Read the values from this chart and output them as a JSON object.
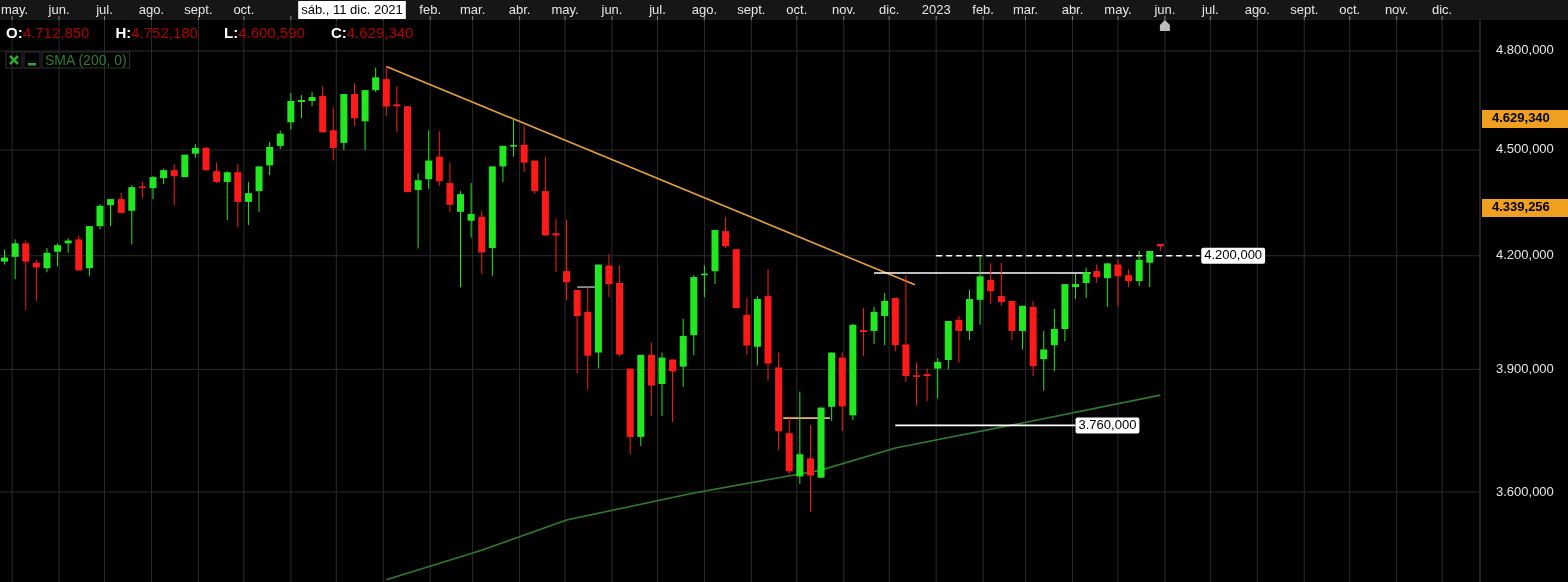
{
  "chart_data": {
    "type": "candlestick",
    "x": [
      "2021-04-26",
      "2021-05-03",
      "2021-05-10",
      "2021-05-17",
      "2021-05-24",
      "2021-05-31",
      "2021-06-07",
      "2021-06-14",
      "2021-06-21",
      "2021-06-28",
      "2021-07-05",
      "2021-07-12",
      "2021-07-19",
      "2021-07-26",
      "2021-08-02",
      "2021-08-09",
      "2021-08-16",
      "2021-08-23",
      "2021-08-30",
      "2021-09-06",
      "2021-09-13",
      "2021-09-20",
      "2021-09-27",
      "2021-10-04",
      "2021-10-11",
      "2021-10-18",
      "2021-10-25",
      "2021-11-01",
      "2021-11-08",
      "2021-11-15",
      "2021-11-22",
      "2021-11-29",
      "2021-12-06",
      "2021-12-13",
      "2021-12-20",
      "2021-12-27",
      "2022-01-03",
      "2022-01-10",
      "2022-01-17",
      "2022-01-24",
      "2022-01-31",
      "2022-02-07",
      "2022-02-14",
      "2022-02-21",
      "2022-02-28",
      "2022-03-07",
      "2022-03-14",
      "2022-03-21",
      "2022-03-28",
      "2022-04-04",
      "2022-04-11",
      "2022-04-18",
      "2022-04-25",
      "2022-05-02",
      "2022-05-09",
      "2022-05-16",
      "2022-05-23",
      "2022-05-30",
      "2022-06-06",
      "2022-06-13",
      "2022-06-20",
      "2022-06-27",
      "2022-07-04",
      "2022-07-11",
      "2022-07-18",
      "2022-07-25",
      "2022-08-01",
      "2022-08-08",
      "2022-08-15",
      "2022-08-22",
      "2022-08-29",
      "2022-09-05",
      "2022-09-12",
      "2022-09-19",
      "2022-09-26",
      "2022-10-03",
      "2022-10-10",
      "2022-10-17",
      "2022-10-24",
      "2022-10-31",
      "2022-11-07",
      "2022-11-14",
      "2022-11-21",
      "2022-11-28",
      "2022-12-05",
      "2022-12-12",
      "2022-12-19",
      "2022-12-26",
      "2023-01-02",
      "2023-01-09",
      "2023-01-16",
      "2023-01-23",
      "2023-01-30",
      "2023-02-06",
      "2023-02-13",
      "2023-02-20",
      "2023-02-27",
      "2023-03-06",
      "2023-03-13",
      "2023-03-20",
      "2023-03-27",
      "2023-04-03",
      "2023-04-10",
      "2023-04-17",
      "2023-04-24",
      "2023-05-01",
      "2023-05-08",
      "2023-05-15",
      "2023-05-22",
      "2023-05-29"
    ],
    "ohlc": [
      [
        4184,
        4217,
        4176,
        4195
      ],
      [
        4197,
        4245,
        4136,
        4234
      ],
      [
        4234,
        4242,
        4054,
        4184
      ],
      [
        4181,
        4189,
        4078,
        4168
      ],
      [
        4166,
        4221,
        4155,
        4208
      ],
      [
        4211,
        4234,
        4171,
        4229
      ],
      [
        4234,
        4248,
        4208,
        4242
      ],
      [
        4245,
        4256,
        4160,
        4160
      ],
      [
        4166,
        4282,
        4144,
        4282
      ],
      [
        4282,
        4344,
        4273,
        4339
      ],
      [
        4341,
        4358,
        4282,
        4358
      ],
      [
        4358,
        4375,
        4319,
        4319
      ],
      [
        4325,
        4398,
        4231,
        4392
      ],
      [
        4392,
        4407,
        4361,
        4389
      ],
      [
        4389,
        4424,
        4358,
        4421
      ],
      [
        4418,
        4446,
        4401,
        4441
      ],
      [
        4441,
        4458,
        4341,
        4424
      ],
      [
        4421,
        4486,
        4421,
        4486
      ],
      [
        4489,
        4518,
        4477,
        4506
      ],
      [
        4506,
        4509,
        4438,
        4441
      ],
      [
        4438,
        4463,
        4404,
        4407
      ],
      [
        4407,
        4438,
        4299,
        4435
      ],
      [
        4435,
        4458,
        4279,
        4350
      ],
      [
        4350,
        4407,
        4285,
        4375
      ],
      [
        4381,
        4452,
        4322,
        4452
      ],
      [
        4455,
        4523,
        4427,
        4509
      ],
      [
        4512,
        4557,
        4503,
        4548
      ],
      [
        4582,
        4670,
        4560,
        4646
      ],
      [
        4643,
        4664,
        4594,
        4649
      ],
      [
        4646,
        4673,
        4630,
        4658
      ],
      [
        4661,
        4691,
        4552,
        4552
      ],
      [
        4558,
        4627,
        4469,
        4506
      ],
      [
        4521,
        4667,
        4500,
        4667
      ],
      [
        4667,
        4700,
        4570,
        4594
      ],
      [
        4585,
        4679,
        4500,
        4679
      ],
      [
        4679,
        4748,
        4673,
        4718
      ],
      [
        4712.85,
        4752.18,
        4600.59,
        4629.34
      ],
      [
        4636,
        4691,
        4552,
        4630
      ],
      [
        4630,
        4630,
        4378,
        4378
      ],
      [
        4384,
        4432,
        4220,
        4412
      ],
      [
        4415,
        4558,
        4387,
        4469
      ],
      [
        4480,
        4555,
        4395,
        4409
      ],
      [
        4404,
        4463,
        4322,
        4342
      ],
      [
        4322,
        4381,
        4115,
        4372
      ],
      [
        4297,
        4404,
        4250,
        4316
      ],
      [
        4308,
        4325,
        4150,
        4209
      ],
      [
        4221,
        4452,
        4144,
        4452
      ],
      [
        4452,
        4512,
        4407,
        4512
      ],
      [
        4509,
        4591,
        4480,
        4512
      ],
      [
        4515,
        4570,
        4435,
        4463
      ],
      [
        4469,
        4469,
        4372,
        4381
      ],
      [
        4381,
        4480,
        4256,
        4256
      ],
      [
        4262,
        4302,
        4155,
        4256
      ],
      [
        4158,
        4299,
        4080,
        4128
      ],
      [
        4107,
        4107,
        3890,
        4038
      ],
      [
        4049,
        4115,
        3849,
        3935
      ],
      [
        3943,
        4176,
        3902,
        4176
      ],
      [
        4173,
        4205,
        4088,
        4123
      ],
      [
        4126,
        4173,
        3933,
        3938
      ],
      [
        3902,
        3902,
        3690,
        3732
      ],
      [
        3732,
        3937,
        3710,
        3937
      ],
      [
        3937,
        3969,
        3783,
        3859
      ],
      [
        3863,
        3943,
        3783,
        3930
      ],
      [
        3925,
        3925,
        3768,
        3895
      ],
      [
        3907,
        4031,
        3856,
        3986
      ],
      [
        3988,
        4147,
        3936,
        4142
      ],
      [
        4145,
        4173,
        4088,
        4149
      ],
      [
        4158,
        4271,
        4123,
        4271
      ],
      [
        4268,
        4308,
        4221,
        4226
      ],
      [
        4218,
        4218,
        4059,
        4059
      ],
      [
        4041,
        4086,
        3938,
        3961
      ],
      [
        3958,
        4091,
        3910,
        4083
      ],
      [
        4091,
        4163,
        3871,
        3915
      ],
      [
        3905,
        3943,
        3700,
        3746
      ],
      [
        3741,
        3780,
        3642,
        3649
      ],
      [
        3637,
        3844,
        3619,
        3690
      ],
      [
        3680,
        3761,
        3554,
        3639
      ],
      [
        3634,
        3804,
        3634,
        3804
      ],
      [
        3806,
        3943,
        3771,
        3943
      ],
      [
        3930,
        3943,
        3746,
        3807
      ],
      [
        3785,
        4017,
        3773,
        4015
      ],
      [
        4001,
        4059,
        3935,
        3996
      ],
      [
        3999,
        4062,
        3965,
        4049
      ],
      [
        4038,
        4099,
        3962,
        4078
      ],
      [
        4086,
        4086,
        3946,
        3962
      ],
      [
        3964,
        4147,
        3868,
        3883
      ],
      [
        3885,
        3917,
        3809,
        3881
      ],
      [
        3888,
        3902,
        3820,
        3883
      ],
      [
        3902,
        3929,
        3827,
        3919
      ],
      [
        3924,
        4025,
        3900,
        4025
      ],
      [
        4028,
        4038,
        3917,
        3999
      ],
      [
        3999,
        4107,
        3975,
        4083
      ],
      [
        4081,
        4197,
        4015,
        4144
      ],
      [
        4134,
        4179,
        4070,
        4104
      ],
      [
        4091,
        4181,
        4065,
        4075
      ],
      [
        4078,
        4078,
        3975,
        3999
      ],
      [
        3999,
        4065,
        3951,
        4065
      ],
      [
        4062,
        4078,
        3883,
        3908
      ],
      [
        3926,
        3999,
        3846,
        3951
      ],
      [
        3962,
        4057,
        3895,
        4004
      ],
      [
        4004,
        4123,
        3972,
        4123
      ],
      [
        4115,
        4150,
        4083,
        4123
      ],
      [
        4126,
        4168,
        4086,
        4155
      ],
      [
        4158,
        4176,
        4126,
        4142
      ],
      [
        4139,
        4181,
        4062,
        4179
      ],
      [
        4176,
        4189,
        4065,
        4144
      ],
      [
        4147,
        4163,
        4115,
        4131
      ],
      [
        4131,
        4213,
        4118,
        4189
      ],
      [
        4181,
        4213,
        4115,
        4213
      ],
      [
        4232,
        4232,
        4213,
        4226
      ]
    ],
    "series": [
      {
        "type": "line",
        "name": "SMA (200, 0)",
        "color": "#2e7d2e",
        "x": [
          "2022-01-03",
          "2022-03-07",
          "2022-05-02",
          "2022-07-25",
          "2022-10-17",
          "2022-12-05",
          "2023-02-27",
          "2023-05-29"
        ],
        "values": [
          3400,
          3466,
          3535,
          3598,
          3652,
          3705,
          3766,
          3835
        ]
      },
      {
        "type": "line",
        "color": "#e8a040",
        "x": [
          "2022-01-03",
          "2022-12-18"
        ],
        "values": [
          4752,
          4121
        ]
      },
      {
        "type": "line",
        "color": "#ffffff",
        "x": [
          "2022-11-21",
          "2023-04-13"
        ],
        "values": [
          4153,
          4153
        ]
      },
      {
        "type": "line",
        "color": "#ffffff",
        "line_style": "dashed",
        "x": [
          "2023-01-01",
          "2023-06-24"
        ],
        "values": [
          4200,
          4200
        ]
      },
      {
        "type": "line",
        "color": "#ffffff",
        "x": [
          "2022-12-05",
          "2023-04-03"
        ],
        "values": [
          3760,
          3760
        ]
      },
      {
        "type": "line",
        "color": "#f0b070",
        "x": [
          "2022-09-22",
          "2022-10-23"
        ],
        "values": [
          3778,
          3778
        ]
      },
      {
        "type": "line",
        "color": "#a0a0a0",
        "x": [
          "2022-05-09",
          "2022-05-22"
        ],
        "values": [
          4115,
          4115
        ]
      }
    ],
    "log": true,
    "ylim": [
      3395,
      4898
    ],
    "yticks": [
      {
        "value": 3600,
        "label": "3.600,000"
      },
      {
        "value": 3900,
        "label": "3.900,000"
      },
      {
        "value": 4200,
        "label": "4.200,000"
      },
      {
        "value": 4500,
        "label": "4.500,000"
      },
      {
        "value": 4800,
        "label": "4.800,000"
      }
    ],
    "xlim": [
      "2021-04-23",
      "2023-12-26"
    ],
    "xticks": [
      {
        "value": "2021-05-01",
        "label": "may."
      },
      {
        "value": "2021-06-01",
        "label": "jun."
      },
      {
        "value": "2021-07-01",
        "label": "jul."
      },
      {
        "value": "2021-08-01",
        "label": "ago."
      },
      {
        "value": "2021-09-01",
        "label": "sept."
      },
      {
        "value": "2021-10-01",
        "label": "oct."
      },
      {
        "value": "2021-11-01",
        "label": null
      },
      {
        "value": "2021-12-01",
        "label": null
      },
      {
        "value": "2022-01-01",
        "label": null
      },
      {
        "value": "2022-02-01",
        "label": "feb."
      },
      {
        "value": "2022-03-01",
        "label": "mar."
      },
      {
        "value": "2022-04-01",
        "label": "abr."
      },
      {
        "value": "2022-05-01",
        "label": "may."
      },
      {
        "value": "2022-06-01",
        "label": "jun."
      },
      {
        "value": "2022-07-01",
        "label": "jul."
      },
      {
        "value": "2022-08-01",
        "label": "ago."
      },
      {
        "value": "2022-09-01",
        "label": "sept."
      },
      {
        "value": "2022-10-01",
        "label": "oct."
      },
      {
        "value": "2022-11-01",
        "label": "nov."
      },
      {
        "value": "2022-12-01",
        "label": "dic."
      },
      {
        "value": "2023-01-01",
        "label": "2023"
      },
      {
        "value": "2023-02-01",
        "label": "feb."
      },
      {
        "value": "2023-03-01",
        "label": "mar."
      },
      {
        "value": "2023-04-01",
        "label": "abr."
      },
      {
        "value": "2023-05-01",
        "label": "may."
      },
      {
        "value": "2023-06-01",
        "label": "jun."
      },
      {
        "value": "2023-07-01",
        "label": "jul."
      },
      {
        "value": "2023-08-01",
        "label": "ago."
      },
      {
        "value": "2023-09-01",
        "label": "sept."
      },
      {
        "value": "2023-10-01",
        "label": "oct."
      },
      {
        "value": "2023-11-01",
        "label": "nov."
      },
      {
        "value": "2023-12-01",
        "label": "dic."
      }
    ],
    "grid": true,
    "legend": "top left",
    "annotations": [
      "O:4.712,850",
      "H:4.752,180",
      "L:4.600,590",
      "C:4.629,340",
      "sáb., 11 dic. 2021",
      "4.629,340",
      "4.339,256",
      {
        "text": "4.200,000",
        "x": "2023-06-25",
        "y": 4200
      },
      {
        "text": "3.760,000",
        "x": "2023-04-03",
        "y": 3760
      }
    ]
  }
}
